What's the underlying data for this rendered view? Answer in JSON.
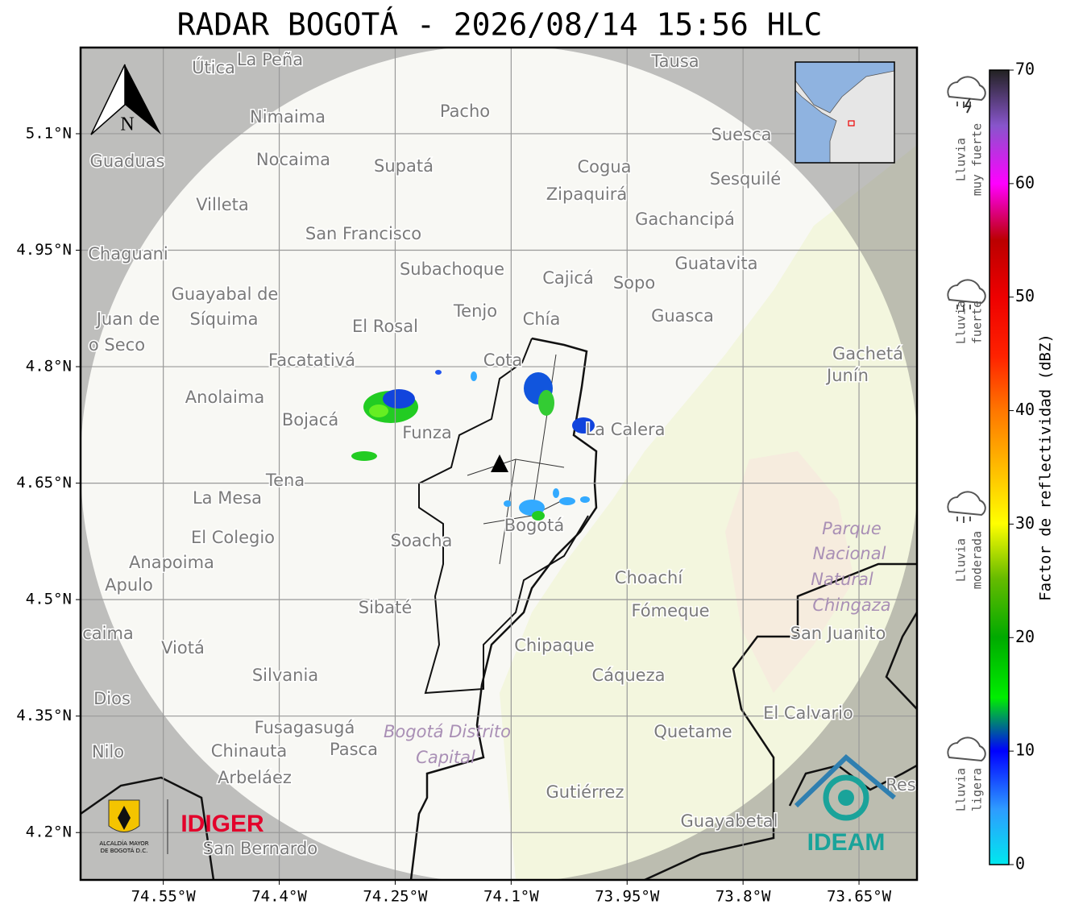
{
  "title": "RADAR BOGOTÁ - 2026/08/14 15:56 HLC",
  "map": {
    "xlim": [
      -74.657,
      -73.575
    ],
    "ylim": [
      4.139,
      5.211
    ],
    "grid": true,
    "xticks": [
      {
        "value": -74.55,
        "label": "74.55°W"
      },
      {
        "value": -74.4,
        "label": "74.4°W"
      },
      {
        "value": -74.25,
        "label": "74.25°W"
      },
      {
        "value": -74.1,
        "label": "74.1°W"
      },
      {
        "value": -73.95,
        "label": "73.95°W"
      },
      {
        "value": -73.8,
        "label": "73.8°W"
      },
      {
        "value": -73.65,
        "label": "73.65°W"
      }
    ],
    "yticks": [
      {
        "value": 5.1,
        "label": "5.1°N"
      },
      {
        "value": 4.95,
        "label": "4.95°N"
      },
      {
        "value": 4.8,
        "label": "4.8°N"
      },
      {
        "value": 4.65,
        "label": "4.65°N"
      },
      {
        "value": 4.5,
        "label": "4.5°N"
      },
      {
        "value": 4.35,
        "label": "4.35°N"
      },
      {
        "value": 4.2,
        "label": "4.2°N"
      }
    ],
    "north_label": "N",
    "places": [
      "Útica",
      "La Peña",
      "Tausa",
      "Pacho",
      "Nimaima",
      "Guaduas",
      "Nocaima",
      "Supatá",
      "Cogua",
      "Suesca",
      "Sesquilé",
      "Zipaquirá",
      "Villeta",
      "Gachancipá",
      "San Francisco",
      "Chaguani",
      "Guatavita",
      "Subachoque",
      "Cajicá",
      "Sopo",
      "Guayabal de",
      "Síquima",
      "Juan de",
      "o Seco",
      "Tenjo",
      "Chía",
      "Guasca",
      "El Rosal",
      "Facatativá",
      "Cota",
      "Gachetá",
      "Junín",
      "Anolaima",
      "Bojacá",
      "Funza",
      "La Calera",
      "Tena",
      "La Mesa",
      "El Colegio",
      "Soacha",
      "Bogotá",
      "Anapoima",
      "Apulo",
      "Choachí",
      "Fómeque",
      "Sibaté",
      "San Juanito",
      "caima",
      "Viotá",
      "Chipaque",
      "Silvania",
      "Cáqueza",
      "Dios",
      "El Calvario",
      "Fusagasugá",
      "Quetame",
      "Nilo",
      "Chinauta",
      "Pasca",
      "Arbeláez",
      "Gutiérrez",
      "Guayabetal",
      "San Bernardo",
      "Res"
    ],
    "special_places": [
      "Parque",
      "Nacional",
      "Natural",
      "Chingaza",
      "Bogotá Distrito",
      "Capital"
    ]
  },
  "colorbar": {
    "label": "Factor de reflectividad (dBZ)",
    "lim": [
      0,
      70
    ],
    "ticks": [
      0,
      10,
      20,
      30,
      40,
      50,
      60,
      70
    ]
  },
  "legend": [
    [
      "Lluvia",
      "muy fuerte"
    ],
    [
      "Lluvia",
      "fuerte"
    ],
    [
      "Lluvia",
      "moderada"
    ],
    [
      "Lluvia",
      "ligera"
    ]
  ],
  "logos": {
    "alcaldia": [
      "ALCALDÍA MAYOR",
      "DE BOGOTÁ D.C."
    ],
    "idiger": "IDIGER",
    "ideam": "IDEAM"
  }
}
